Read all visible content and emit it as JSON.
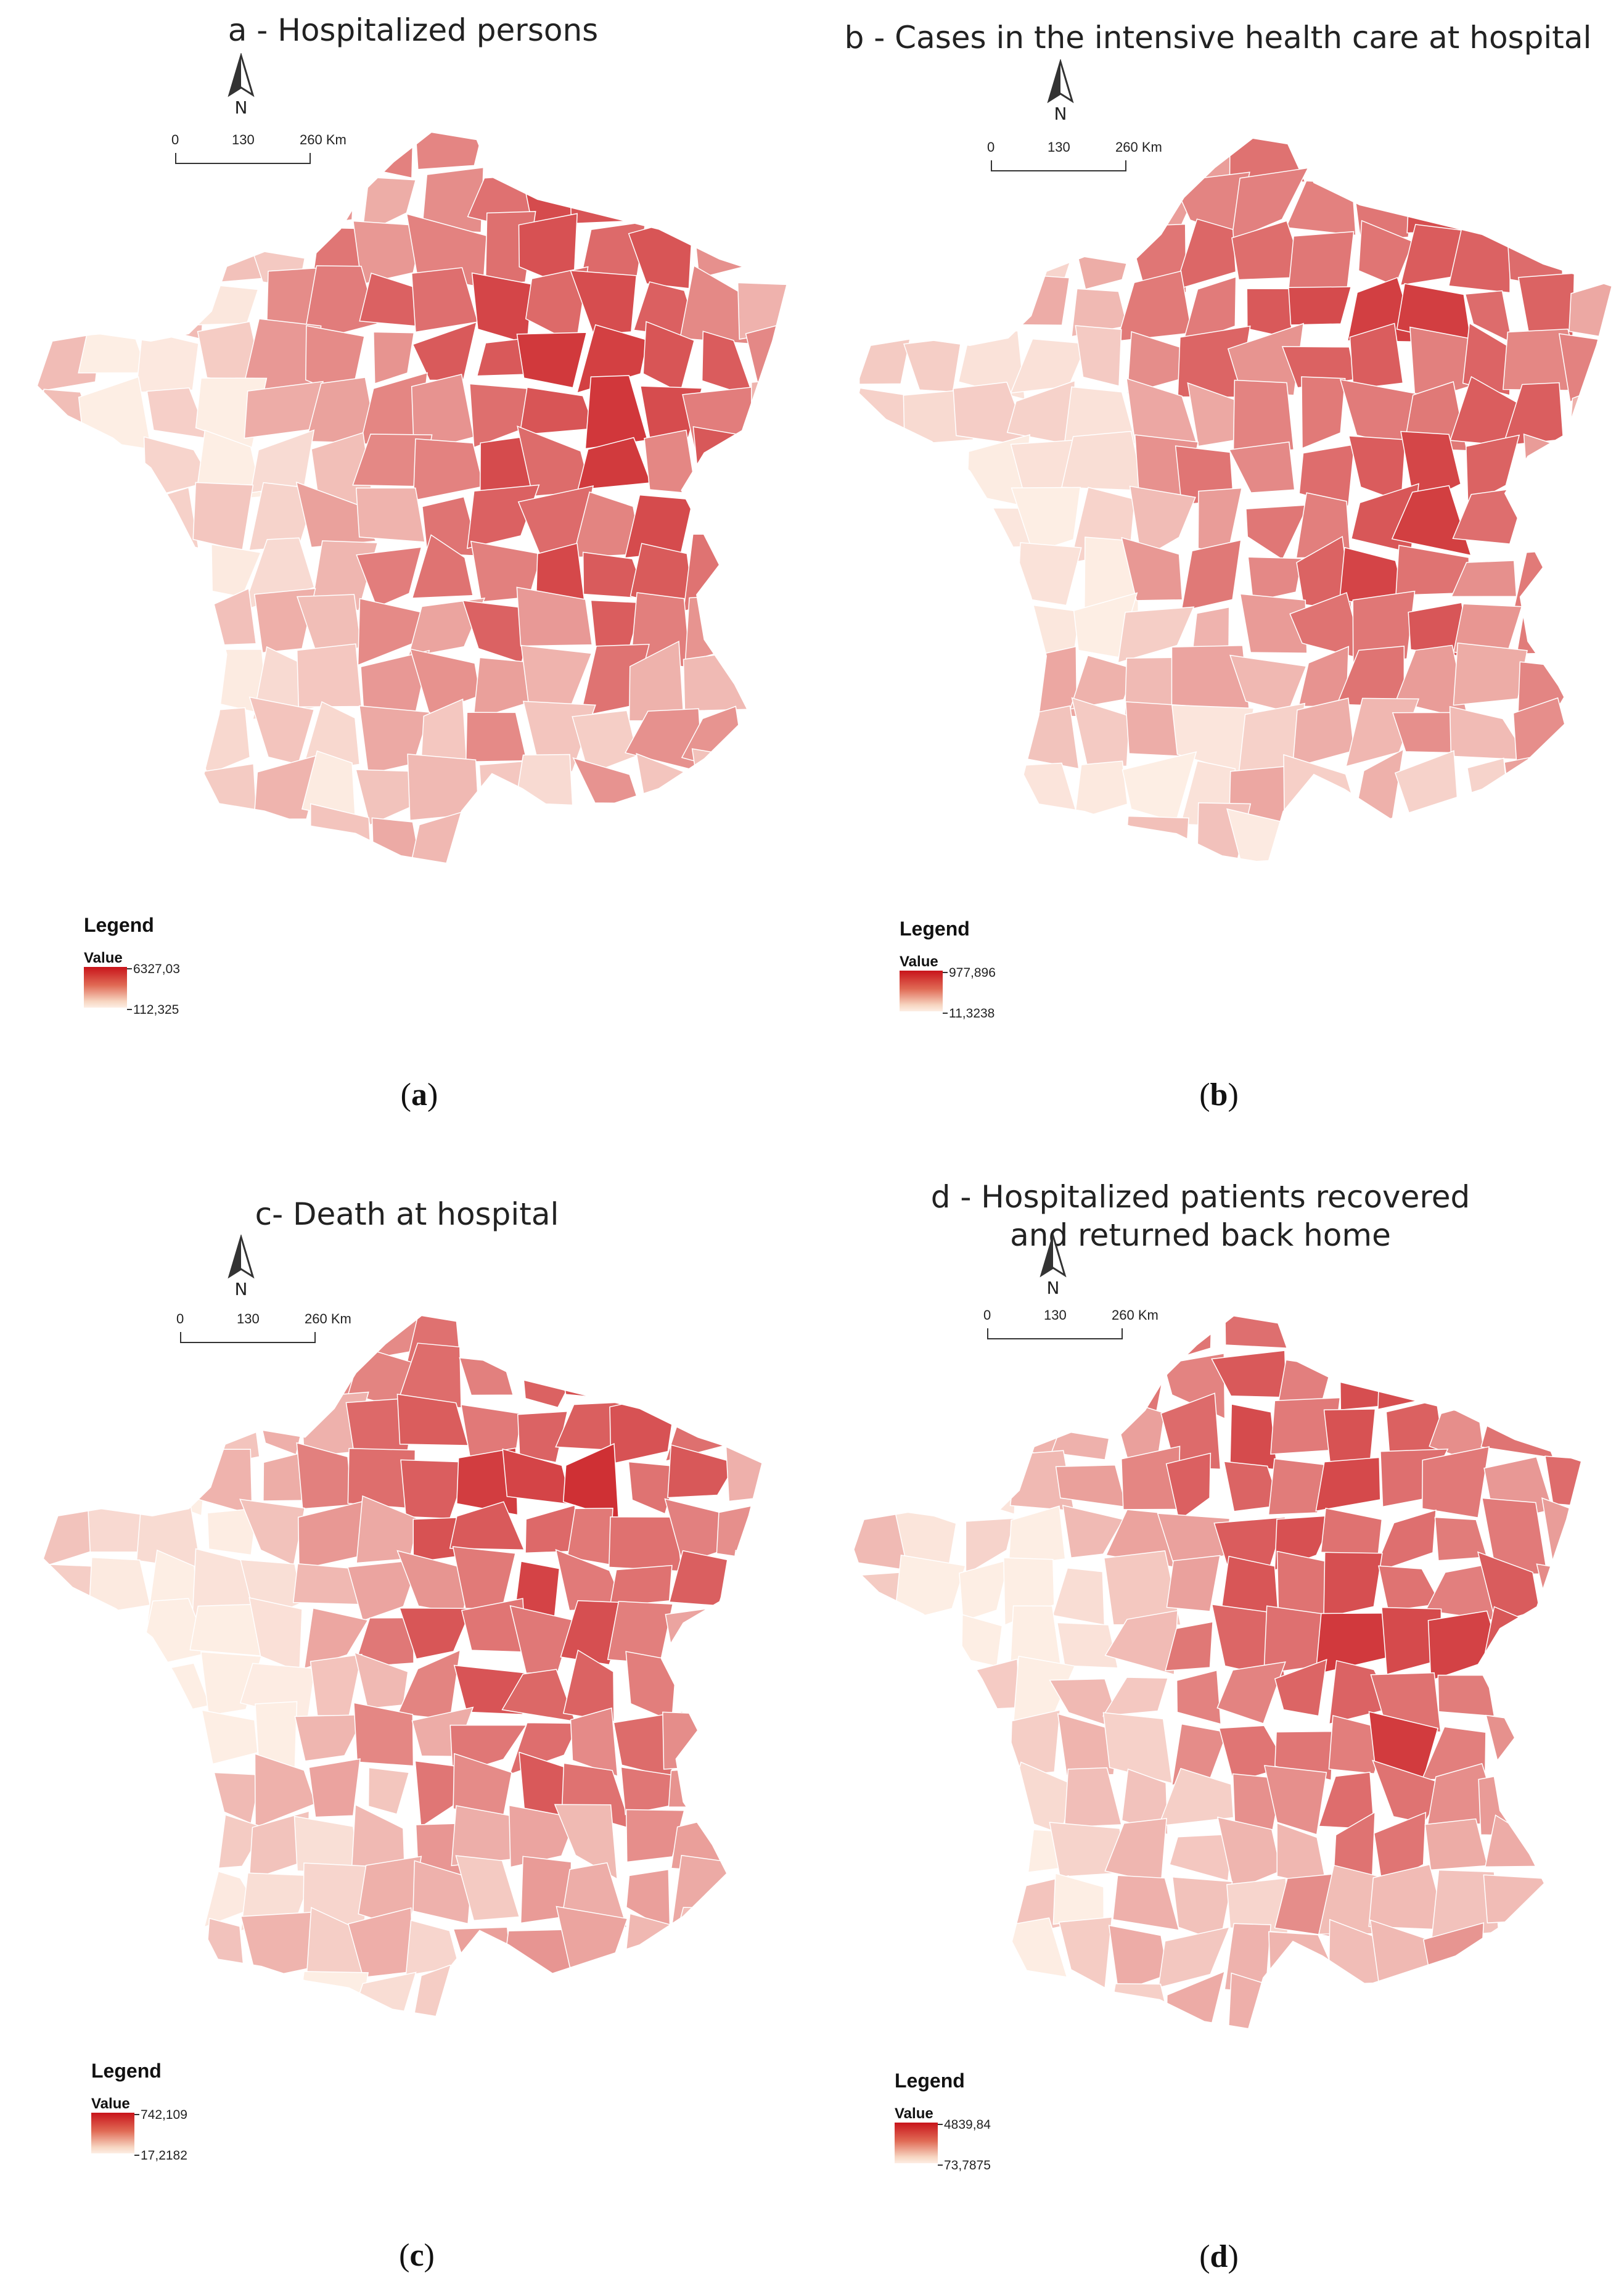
{
  "colors": {
    "high": "#c8141a",
    "low": "#fdeee4",
    "border": "#ffffff"
  },
  "scale": {
    "zero": "0",
    "mid": "130",
    "end": "260 Km"
  },
  "north_label": "N",
  "legend_title": "Legend",
  "legend_value_label": "Value",
  "panels": [
    {
      "id": "a",
      "title": "a - Hospitalized persons",
      "caption_open": "(",
      "caption_letter": "a",
      "caption_close": ")",
      "legend_max": "6327,03",
      "legend_min": "112,325"
    },
    {
      "id": "b",
      "title": "b - Cases in the intensive health care at hospital",
      "caption_open": "(",
      "caption_letter": "b",
      "caption_close": ")",
      "legend_max": "977,896",
      "legend_min": "11,3238"
    },
    {
      "id": "c",
      "title": "c- Death at hospital",
      "caption_open": "(",
      "caption_letter": "c",
      "caption_close": ")",
      "legend_max": "742,109",
      "legend_min": "17,2182"
    },
    {
      "id": "d",
      "title": "d - Hospitalized patients recovered\nand returned back home",
      "caption_open": "(",
      "caption_letter": "d",
      "caption_close": ")",
      "legend_max": "4839,84",
      "legend_min": "73,7875"
    }
  ]
}
